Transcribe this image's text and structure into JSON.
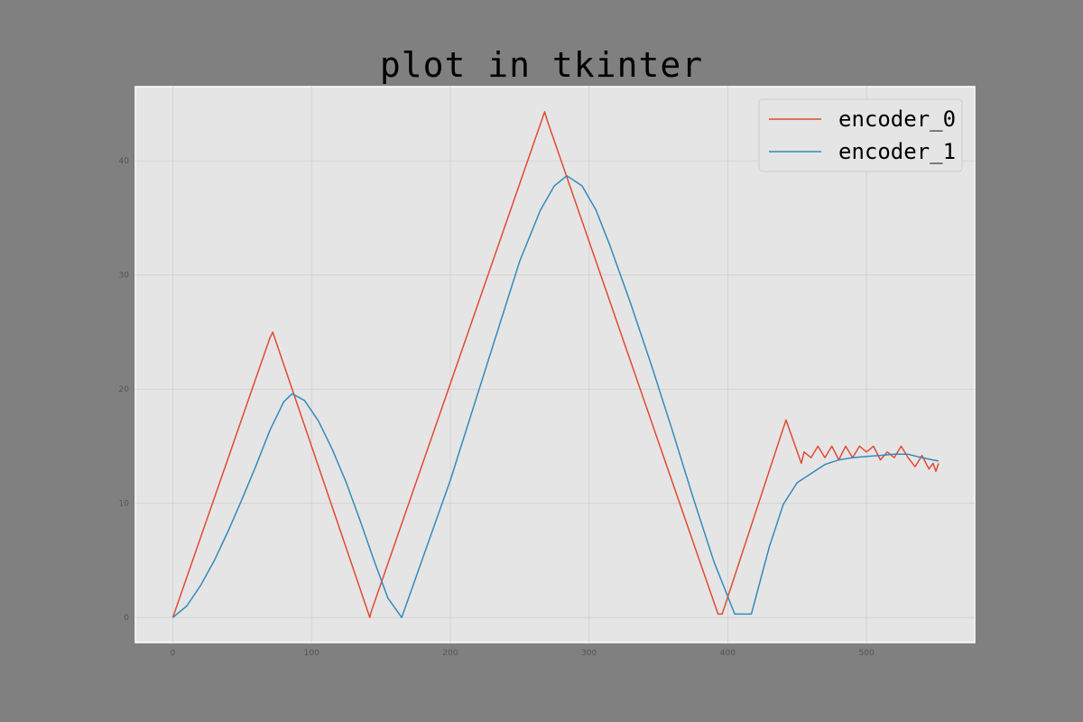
{
  "chart_data": {
    "type": "line",
    "title": "plot in tkinter",
    "xlabel": "",
    "ylabel": "",
    "xlim": [
      -27,
      578
    ],
    "ylim": [
      -2.2,
      46.5
    ],
    "xticks": [
      0,
      100,
      200,
      300,
      400,
      500
    ],
    "yticks": [
      0,
      10,
      20,
      30,
      40
    ],
    "grid": true,
    "legend_position": "top-right",
    "series": [
      {
        "name": "encoder_0",
        "color": "#E24A33",
        "x": [
          0,
          70,
          72,
          142,
          143,
          268,
          270,
          393,
          396,
          442,
          453,
          455,
          460,
          465,
          470,
          475,
          480,
          485,
          490,
          495,
          500,
          505,
          510,
          515,
          520,
          525,
          530,
          535,
          540,
          545,
          548,
          550,
          552
        ],
        "y": [
          0,
          24.5,
          25.0,
          0,
          0.5,
          44.3,
          43.5,
          0.3,
          0.3,
          17.3,
          13.5,
          14.5,
          14.0,
          15.0,
          14.0,
          15.0,
          13.8,
          15.0,
          14.0,
          15.0,
          14.5,
          15.0,
          13.8,
          14.5,
          14.0,
          15.0,
          14.0,
          13.2,
          14.2,
          13.0,
          13.5,
          12.8,
          13.5
        ]
      },
      {
        "name": "encoder_1",
        "color": "#348ABD",
        "x": [
          0,
          10,
          20,
          30,
          40,
          50,
          60,
          70,
          80,
          86,
          95,
          105,
          115,
          125,
          135,
          145,
          155,
          165,
          200,
          250,
          265,
          275,
          284,
          295,
          305,
          315,
          330,
          345,
          360,
          375,
          390,
          405,
          417,
          430,
          440,
          450,
          460,
          470,
          480,
          490,
          500,
          510,
          520,
          530,
          540,
          552
        ],
        "y": [
          0,
          1.0,
          2.8,
          5.0,
          7.6,
          10.4,
          13.3,
          16.4,
          18.9,
          19.6,
          19.0,
          17.2,
          14.7,
          11.8,
          8.5,
          5.0,
          1.7,
          0,
          12.0,
          31.2,
          35.7,
          37.8,
          38.7,
          37.8,
          35.7,
          32.6,
          27.5,
          22.1,
          16.4,
          10.5,
          4.9,
          0.3,
          0.3,
          6.2,
          9.9,
          11.8,
          12.6,
          13.4,
          13.8,
          14.0,
          14.1,
          14.2,
          14.3,
          14.3,
          14.0,
          13.7
        ]
      }
    ]
  }
}
